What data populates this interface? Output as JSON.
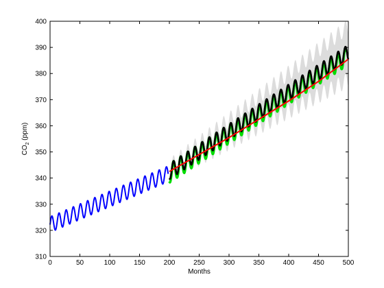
{
  "chart_data": {
    "type": "line",
    "title": "",
    "xlabel": "Months",
    "ylabel": {
      "base": "CO",
      "subscript": "2",
      "suffix": " (ppm)"
    },
    "xlim": [
      0,
      500
    ],
    "ylim": [
      310,
      400
    ],
    "xticks": [
      0,
      50,
      100,
      150,
      200,
      250,
      300,
      350,
      400,
      450,
      500
    ],
    "yticks": [
      310,
      320,
      330,
      340,
      350,
      360,
      370,
      380,
      390,
      400
    ],
    "grid": false,
    "legend": "none",
    "period_months": 12,
    "series": [
      {
        "color": "#dcdcdc",
        "style": "band",
        "x_range": [
          200,
          500
        ],
        "lower_start": 341.5,
        "lower_end": 377.5,
        "upper_start": 344.5,
        "upper_end": 398.0,
        "amplitude": 3.0
      },
      {
        "color": "#00dd00",
        "style": "seasonal",
        "x_range": [
          200,
          497
        ],
        "baseline_start": 341.8,
        "baseline_end": 386.5,
        "amplitude": 3.6,
        "linewidth": 3.5
      },
      {
        "color": "#000000",
        "style": "seasonal",
        "x_range": [
          200,
          500
        ],
        "baseline_start": 342.5,
        "baseline_end": 388.0,
        "amplitude": 3.0,
        "linewidth": 2.6
      },
      {
        "color": "#ff0000",
        "style": "trend",
        "x": [
          200,
          250,
          300,
          350,
          400,
          450,
          500
        ],
        "y": [
          342.5,
          349.0,
          355.5,
          362.5,
          369.5,
          377.0,
          385.5
        ],
        "linewidth": 2.0
      },
      {
        "color": "#0000ff",
        "style": "seasonal",
        "x_range": [
          0,
          198
        ],
        "baseline_start": 322.2,
        "baseline_end": 341.6,
        "amplitude": 3.0,
        "linewidth": 2.0
      }
    ]
  }
}
